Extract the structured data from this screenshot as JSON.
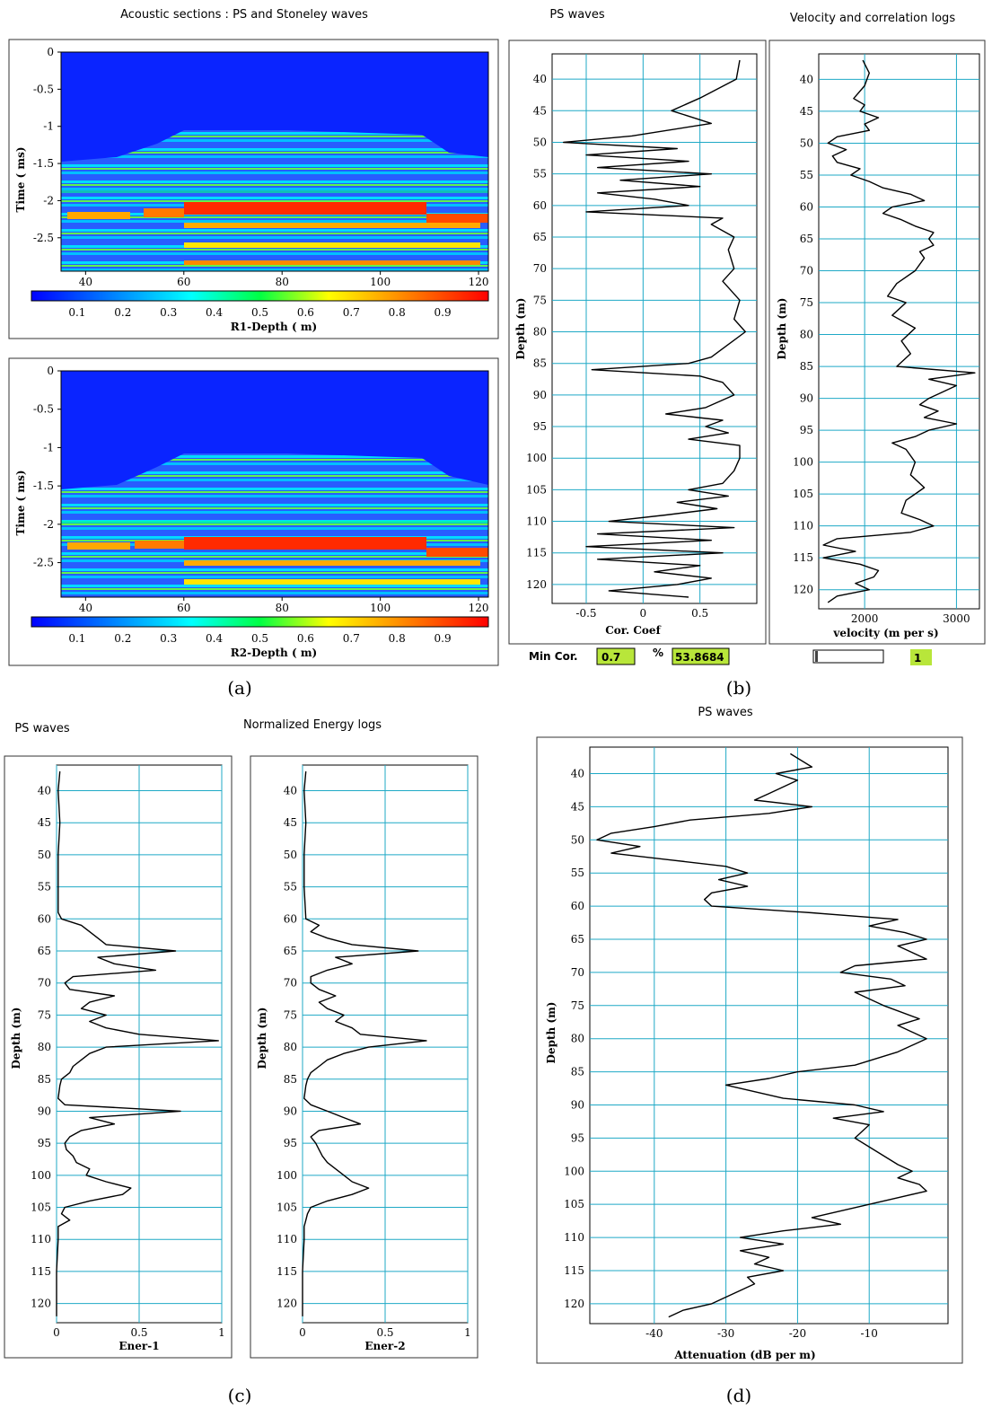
{
  "titles": {
    "acoustic": "Acoustic sections : PS and Stoneley waves",
    "ps_b": "PS waves",
    "vel_corr": "Velocity and correlation logs",
    "ps_c": "PS waves",
    "energy": "Normalized Energy logs",
    "ps_d": "PS waves"
  },
  "subfig": {
    "a": "(a)",
    "b": "(b)",
    "c": "(c)",
    "d": "(d)"
  },
  "controls": {
    "min_cor_label": "Min Cor.",
    "min_cor_value": "0.7",
    "percent_label": "%",
    "percent_value": "53.8684",
    "slider_value": "1"
  },
  "colors": {
    "grid": "#1fa9c6",
    "curve": "#000000",
    "control_bg": "#b8e63a"
  },
  "chart_data": [
    {
      "type": "heatmap",
      "id": "R1",
      "xlabel": "R1-Depth ( m)",
      "ylabel": "Time ( ms)",
      "xticks": [
        40,
        60,
        80,
        100,
        120
      ],
      "yticks": [
        0,
        -0.5,
        -1,
        -1.5,
        -2,
        -2.5
      ],
      "colorbar_ticks": [
        0.1,
        0.2,
        0.3,
        0.4,
        0.5,
        0.6,
        0.7,
        0.8,
        0.9
      ],
      "xlim": [
        35,
        122
      ],
      "ylim": [
        -2.95,
        0
      ],
      "colormap": "jet",
      "clim": [
        0,
        1
      ]
    },
    {
      "type": "heatmap",
      "id": "R2",
      "xlabel": "R2-Depth ( m)",
      "ylabel": "Time ( ms)",
      "xticks": [
        40,
        60,
        80,
        100,
        120
      ],
      "yticks": [
        0,
        -0.5,
        -1,
        -1.5,
        -2,
        -2.5
      ],
      "colorbar_ticks": [
        0.1,
        0.2,
        0.3,
        0.4,
        0.5,
        0.6,
        0.7,
        0.8,
        0.9
      ],
      "xlim": [
        35,
        122
      ],
      "ylim": [
        -2.95,
        0
      ],
      "colormap": "jet",
      "clim": [
        0,
        1
      ]
    },
    {
      "type": "line",
      "id": "corcoef",
      "xlabel": "Cor. Coef",
      "ylabel": "Depth (m)",
      "xlim": [
        -0.8,
        1.0
      ],
      "xticks": [
        -0.5,
        0,
        0.5
      ],
      "ylim": [
        36,
        123
      ],
      "yticks": [
        40,
        45,
        50,
        55,
        60,
        65,
        70,
        75,
        80,
        85,
        90,
        95,
        100,
        105,
        110,
        115,
        120
      ],
      "grid": true,
      "depth": [
        37,
        40,
        43,
        45,
        47,
        49,
        50,
        51,
        52,
        53,
        54,
        55,
        56,
        57,
        58,
        59,
        60,
        61,
        62,
        63,
        65,
        67,
        70,
        72,
        75,
        78,
        80,
        82,
        84,
        85,
        86,
        87,
        88,
        90,
        92,
        93,
        94,
        95,
        96,
        97,
        98,
        100,
        102,
        104,
        105,
        106,
        107,
        108,
        109,
        110,
        111,
        112,
        113,
        114,
        115,
        116,
        117,
        118,
        119,
        120,
        121,
        122
      ],
      "value": [
        0.85,
        0.82,
        0.5,
        0.25,
        0.6,
        -0.1,
        -0.7,
        0.3,
        -0.5,
        0.4,
        -0.4,
        0.6,
        -0.2,
        0.5,
        -0.4,
        0.1,
        0.4,
        -0.5,
        0.7,
        0.6,
        0.8,
        0.75,
        0.8,
        0.7,
        0.85,
        0.8,
        0.9,
        0.75,
        0.6,
        0.4,
        -0.45,
        0.5,
        0.7,
        0.8,
        0.55,
        0.2,
        0.7,
        0.55,
        0.75,
        0.4,
        0.85,
        0.85,
        0.8,
        0.7,
        0.4,
        0.75,
        0.3,
        0.65,
        0.2,
        -0.3,
        0.8,
        -0.4,
        0.6,
        -0.5,
        0.7,
        -0.4,
        0.5,
        0.1,
        0.6,
        0.3,
        -0.3,
        0.4
      ]
    },
    {
      "type": "line",
      "id": "velocity",
      "xlabel": "velocity (m per s)",
      "ylabel": "Depth (m)",
      "xlim": [
        1500,
        3250
      ],
      "xticks": [
        2000,
        3000
      ],
      "ylim": [
        36,
        123
      ],
      "yticks": [
        40,
        45,
        50,
        55,
        60,
        65,
        70,
        75,
        80,
        85,
        90,
        95,
        100,
        105,
        110,
        115,
        120
      ],
      "grid": true,
      "depth": [
        37,
        39,
        41,
        43,
        44,
        45,
        46,
        47,
        48,
        49,
        50,
        51,
        52,
        53,
        54,
        55,
        56,
        57,
        58,
        59,
        60,
        61,
        62,
        63,
        64,
        65,
        66,
        67,
        68,
        70,
        72,
        74,
        75,
        77,
        79,
        81,
        83,
        85,
        86,
        87,
        88,
        89,
        90,
        91,
        92,
        93,
        94,
        95,
        96,
        97,
        98,
        100,
        102,
        104,
        106,
        108,
        109,
        110,
        111,
        112,
        113,
        114,
        115,
        116,
        117,
        118,
        119,
        120,
        121,
        122
      ],
      "value": [
        1980,
        2050,
        2000,
        1880,
        2000,
        1950,
        2150,
        2000,
        2050,
        1700,
        1600,
        1800,
        1650,
        1700,
        1950,
        1850,
        2050,
        2200,
        2500,
        2650,
        2300,
        2200,
        2400,
        2550,
        2750,
        2700,
        2750,
        2600,
        2650,
        2550,
        2350,
        2250,
        2450,
        2300,
        2550,
        2400,
        2500,
        2350,
        3200,
        2700,
        3000,
        2850,
        2700,
        2600,
        2800,
        2650,
        3000,
        2700,
        2550,
        2300,
        2450,
        2550,
        2500,
        2650,
        2450,
        2400,
        2600,
        2750,
        2500,
        1700,
        1550,
        1900,
        1550,
        1950,
        2150,
        2100,
        1900,
        2050,
        1700,
        1600
      ]
    },
    {
      "type": "line",
      "id": "ener1",
      "xlabel": "Ener-1",
      "ylabel": "Depth (m)",
      "xlim": [
        0,
        1
      ],
      "xticks": [
        0,
        0.5,
        1
      ],
      "ylim": [
        36,
        123
      ],
      "yticks": [
        40,
        45,
        50,
        55,
        60,
        65,
        70,
        75,
        80,
        85,
        90,
        95,
        100,
        105,
        110,
        115,
        120
      ],
      "grid": true,
      "depth": [
        37,
        40,
        45,
        50,
        55,
        59,
        60,
        61,
        62,
        63,
        64,
        65,
        66,
        67,
        68,
        69,
        70,
        71,
        72,
        73,
        74,
        75,
        76,
        77,
        78,
        79,
        80,
        81,
        82,
        83,
        84,
        85,
        86,
        88,
        89,
        90,
        91,
        92,
        93,
        94,
        95,
        96,
        97,
        98,
        99,
        100,
        101,
        102,
        103,
        104,
        105,
        106,
        107,
        108,
        110,
        115,
        120,
        122
      ],
      "value": [
        0.02,
        0.01,
        0.02,
        0.01,
        0.01,
        0.01,
        0.03,
        0.15,
        0.2,
        0.25,
        0.3,
        0.72,
        0.25,
        0.35,
        0.6,
        0.1,
        0.05,
        0.08,
        0.35,
        0.2,
        0.15,
        0.3,
        0.2,
        0.3,
        0.5,
        0.98,
        0.3,
        0.2,
        0.15,
        0.1,
        0.08,
        0.03,
        0.02,
        0.01,
        0.05,
        0.75,
        0.2,
        0.35,
        0.15,
        0.08,
        0.05,
        0.06,
        0.1,
        0.12,
        0.2,
        0.18,
        0.3,
        0.45,
        0.4,
        0.2,
        0.05,
        0.03,
        0.08,
        0.01,
        0.01,
        0.0,
        0.0,
        0.0
      ]
    },
    {
      "type": "line",
      "id": "ener2",
      "xlabel": "Ener-2",
      "ylabel": "Depth (m)",
      "xlim": [
        0,
        1
      ],
      "xticks": [
        0,
        0.5,
        1
      ],
      "ylim": [
        36,
        123
      ],
      "yticks": [
        40,
        45,
        50,
        55,
        60,
        65,
        70,
        75,
        80,
        85,
        90,
        95,
        100,
        105,
        110,
        115,
        120
      ],
      "grid": true,
      "depth": [
        37,
        40,
        45,
        50,
        55,
        60,
        61,
        62,
        63,
        64,
        65,
        66,
        67,
        68,
        69,
        70,
        71,
        72,
        73,
        74,
        75,
        76,
        77,
        78,
        79,
        80,
        81,
        82,
        83,
        84,
        85,
        86,
        88,
        89,
        90,
        91,
        92,
        93,
        94,
        95,
        96,
        97,
        98,
        99,
        100,
        101,
        102,
        103,
        104,
        105,
        106,
        107,
        108,
        110,
        115,
        120,
        122
      ],
      "value": [
        0.02,
        0.01,
        0.02,
        0.01,
        0.01,
        0.02,
        0.1,
        0.05,
        0.15,
        0.3,
        0.7,
        0.2,
        0.3,
        0.15,
        0.05,
        0.05,
        0.1,
        0.2,
        0.1,
        0.15,
        0.25,
        0.2,
        0.3,
        0.35,
        0.75,
        0.4,
        0.25,
        0.15,
        0.1,
        0.05,
        0.03,
        0.02,
        0.01,
        0.05,
        0.15,
        0.25,
        0.35,
        0.1,
        0.05,
        0.08,
        0.1,
        0.12,
        0.15,
        0.2,
        0.25,
        0.3,
        0.4,
        0.3,
        0.15,
        0.05,
        0.03,
        0.02,
        0.01,
        0.01,
        0.0,
        0.0,
        0.0
      ]
    },
    {
      "type": "line",
      "id": "attenuation",
      "xlabel": "Attenuation (dB per m)",
      "ylabel": "Depth (m)",
      "xlim": [
        -49,
        1
      ],
      "xticks": [
        -40,
        -30,
        -20,
        -10
      ],
      "ylim": [
        36,
        123
      ],
      "yticks": [
        40,
        45,
        50,
        55,
        60,
        65,
        70,
        75,
        80,
        85,
        90,
        95,
        100,
        105,
        110,
        115,
        120
      ],
      "grid": true,
      "depth": [
        37,
        39,
        40,
        41,
        43,
        44,
        45,
        46,
        47,
        48,
        49,
        50,
        51,
        52,
        53,
        54,
        55,
        56,
        57,
        58,
        59,
        60,
        61,
        62,
        63,
        64,
        65,
        66,
        67,
        68,
        69,
        70,
        71,
        72,
        73,
        75,
        77,
        78,
        80,
        82,
        84,
        85,
        86,
        87,
        88,
        89,
        90,
        91,
        92,
        93,
        95,
        97,
        99,
        100,
        101,
        102,
        103,
        104,
        105,
        106,
        107,
        108,
        109,
        110,
        111,
        112,
        113,
        114,
        115,
        116,
        117,
        118,
        119,
        120,
        121,
        122
      ],
      "value": [
        -21,
        -18,
        -23,
        -20,
        -24,
        -26,
        -18,
        -24,
        -35,
        -40,
        -46,
        -48,
        -42,
        -46,
        -38,
        -30,
        -27,
        -31,
        -27,
        -32,
        -33,
        -32,
        -18,
        -6,
        -10,
        -5,
        -2,
        -6,
        -4,
        -2,
        -12,
        -14,
        -7,
        -5,
        -12,
        -8,
        -3,
        -6,
        -2,
        -6,
        -12,
        -20,
        -24,
        -30,
        -26,
        -22,
        -12,
        -8,
        -15,
        -10,
        -12,
        -9,
        -6,
        -4,
        -6,
        -3,
        -2,
        -6,
        -10,
        -14,
        -18,
        -14,
        -22,
        -28,
        -22,
        -28,
        -24,
        -26,
        -22,
        -27,
        -26,
        -28,
        -30,
        -32,
        -36,
        -38
      ]
    }
  ]
}
